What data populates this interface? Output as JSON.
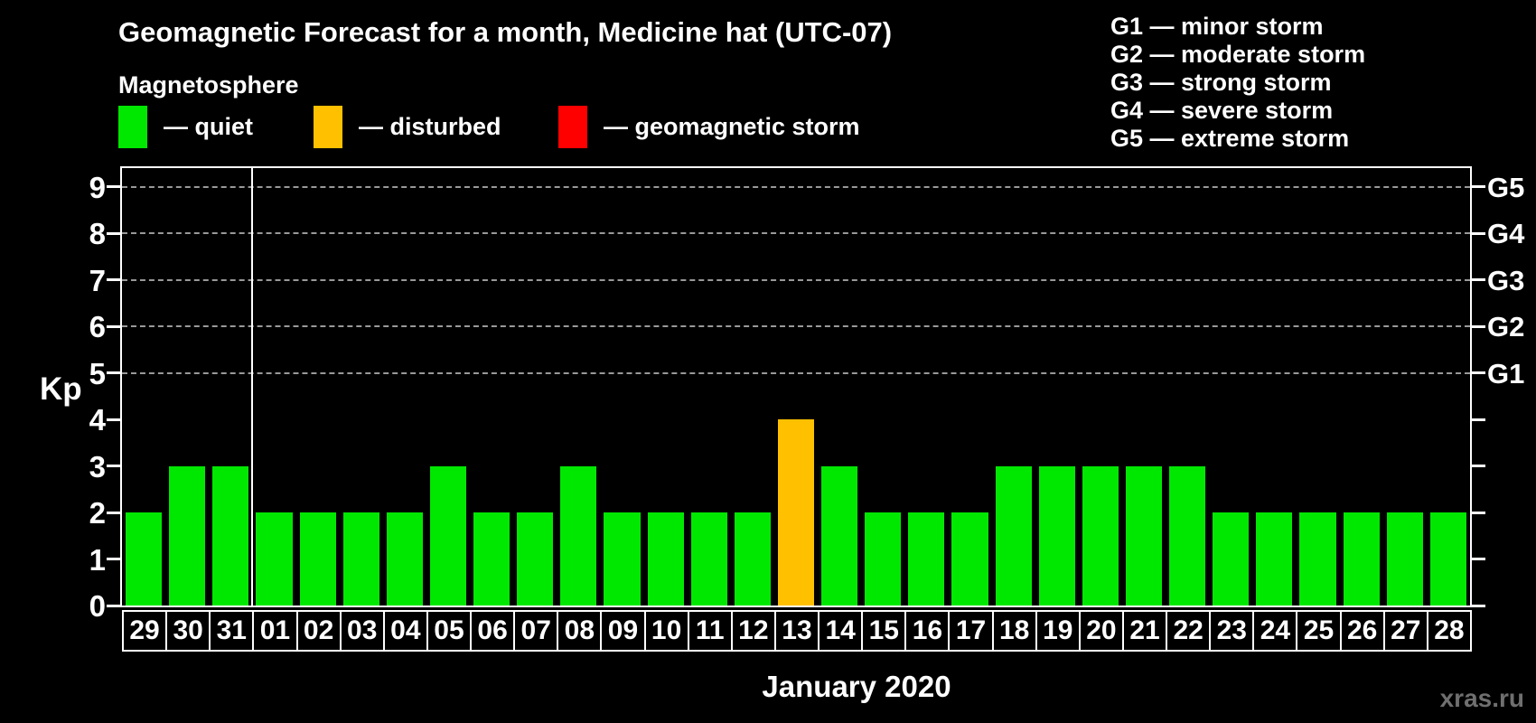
{
  "title": "Geomagnetic Forecast for a month, Medicine hat (UTC-07)",
  "subtitle": "Magnetosphere",
  "legend": {
    "items": [
      {
        "name": "quiet",
        "label": "— quiet",
        "color": "#00e800"
      },
      {
        "name": "disturbed",
        "label": "— disturbed",
        "color": "#ffc000"
      },
      {
        "name": "geomagnetic-storm",
        "label": "— geomagnetic storm",
        "color": "#ff0000"
      }
    ]
  },
  "g_legend": [
    "G1 — minor storm",
    "G2 — moderate storm",
    "G3 — strong storm",
    "G4 — severe storm",
    "G5 — extreme storm"
  ],
  "watermark": "xras.ru",
  "chart_data": {
    "type": "bar",
    "title": "Geomagnetic Forecast for a month, Medicine hat (UTC-07)",
    "xlabel": "January 2020",
    "ylabel": "Kp",
    "ylim": [
      0,
      9.5
    ],
    "yticks": [
      0,
      1,
      2,
      3,
      4,
      5,
      6,
      7,
      8,
      9
    ],
    "grid_dashed_at": [
      5,
      6,
      7,
      8,
      9
    ],
    "right_axis": [
      {
        "value": 5,
        "label": "G1"
      },
      {
        "value": 6,
        "label": "G2"
      },
      {
        "value": 7,
        "label": "G3"
      },
      {
        "value": 8,
        "label": "G4"
      },
      {
        "value": 9,
        "label": "G5"
      }
    ],
    "categories": [
      "29",
      "30",
      "31",
      "01",
      "02",
      "03",
      "04",
      "05",
      "06",
      "07",
      "08",
      "09",
      "10",
      "11",
      "12",
      "13",
      "14",
      "15",
      "16",
      "17",
      "18",
      "19",
      "20",
      "21",
      "22",
      "23",
      "24",
      "25",
      "26",
      "27",
      "28"
    ],
    "values": [
      2,
      3,
      3,
      2,
      2,
      2,
      2,
      3,
      2,
      2,
      3,
      2,
      2,
      2,
      2,
      4,
      3,
      2,
      2,
      2,
      3,
      3,
      3,
      3,
      3,
      2,
      2,
      2,
      2,
      2,
      2
    ],
    "statuses": [
      "quiet",
      "quiet",
      "quiet",
      "quiet",
      "quiet",
      "quiet",
      "quiet",
      "quiet",
      "quiet",
      "quiet",
      "quiet",
      "quiet",
      "quiet",
      "quiet",
      "quiet",
      "disturbed",
      "quiet",
      "quiet",
      "quiet",
      "quiet",
      "quiet",
      "quiet",
      "quiet",
      "quiet",
      "quiet",
      "quiet",
      "quiet",
      "quiet",
      "quiet",
      "quiet",
      "quiet"
    ],
    "status_colors": {
      "quiet": "#00e800",
      "disturbed": "#ffc000",
      "storm": "#ff0000"
    },
    "month_separator_after_index": 2,
    "grid": "dashed-horizontal",
    "legend_position": "top"
  }
}
